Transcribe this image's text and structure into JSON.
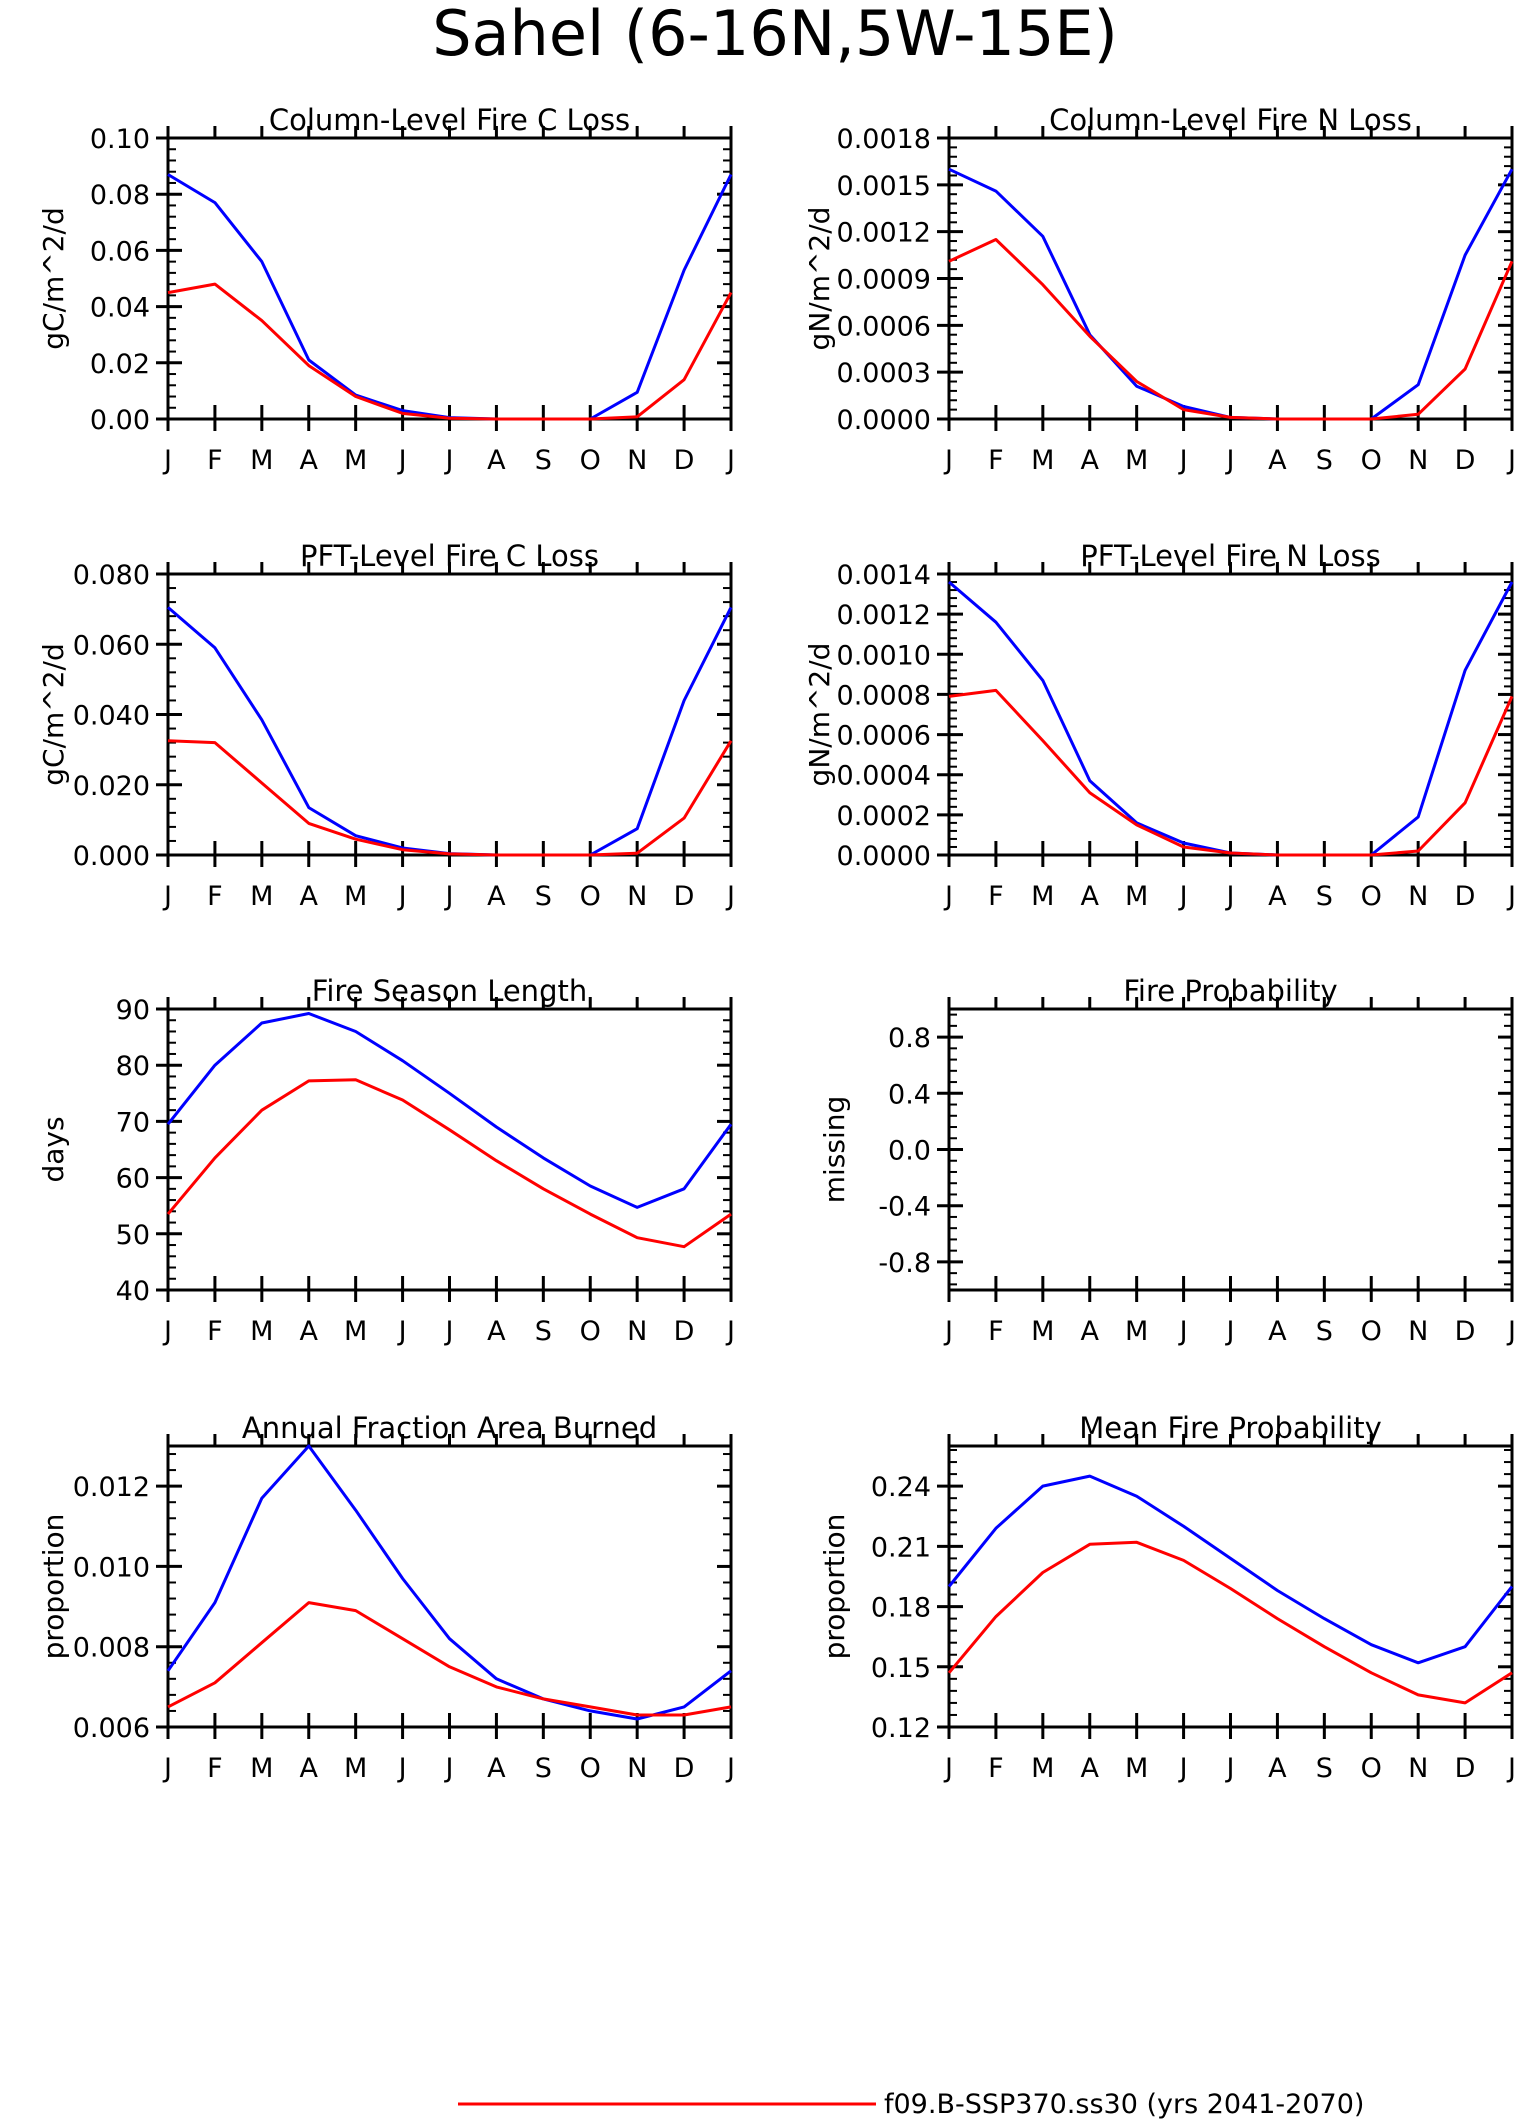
{
  "figure": {
    "title": "Sahel (6-16N,5W-15E)",
    "legend": [
      {
        "label": "f09.B-SSP370.ss30 (yrs 2041-2070)",
        "color": "#ff0000"
      }
    ]
  },
  "chart_data": [
    {
      "id": "col-fire-c",
      "type": "line",
      "title": "Column-Level Fire C Loss",
      "xlabel": "",
      "ylabel": "gC/m^2/d",
      "categories": [
        "J",
        "F",
        "M",
        "A",
        "M",
        "J",
        "J",
        "A",
        "S",
        "O",
        "N",
        "D",
        "J"
      ],
      "ylim": [
        0,
        0.1
      ],
      "yticks": [
        "0.00",
        "0.02",
        "0.04",
        "0.06",
        "0.08",
        "0.10"
      ],
      "series": [
        {
          "color": "#0000ff",
          "values": [
            0.087,
            0.077,
            0.056,
            0.021,
            0.0085,
            0.003,
            0.0005,
            0.0,
            0.0,
            0.0,
            0.0095,
            0.053,
            0.087
          ]
        },
        {
          "color": "#ff0000",
          "values": [
            0.045,
            0.048,
            0.035,
            0.019,
            0.008,
            0.002,
            0.0003,
            0.0,
            0.0,
            0.0,
            0.0008,
            0.014,
            0.045
          ]
        }
      ]
    },
    {
      "id": "col-fire-n",
      "type": "line",
      "title": "Column-Level Fire N Loss",
      "xlabel": "",
      "ylabel": "gN/m^2/d",
      "categories": [
        "J",
        "F",
        "M",
        "A",
        "M",
        "J",
        "J",
        "A",
        "S",
        "O",
        "N",
        "D",
        "J"
      ],
      "ylim": [
        0,
        0.0018
      ],
      "yticks": [
        "0.0000",
        "0.0003",
        "0.0006",
        "0.0009",
        "0.0012",
        "0.0015",
        "0.0018"
      ],
      "series": [
        {
          "color": "#0000ff",
          "values": [
            0.0016,
            0.00146,
            0.00117,
            0.00054,
            0.00021,
            8e-05,
            1e-05,
            0.0,
            0.0,
            0.0,
            0.00022,
            0.00105,
            0.0016
          ]
        },
        {
          "color": "#ff0000",
          "values": [
            0.00101,
            0.00115,
            0.00086,
            0.00053,
            0.00024,
            6e-05,
            1e-05,
            0.0,
            0.0,
            0.0,
            3e-05,
            0.00032,
            0.00101
          ]
        }
      ]
    },
    {
      "id": "pft-fire-c",
      "type": "line",
      "title": "PFT-Level Fire C Loss",
      "xlabel": "",
      "ylabel": "gC/m^2/d",
      "categories": [
        "J",
        "F",
        "M",
        "A",
        "M",
        "J",
        "J",
        "A",
        "S",
        "O",
        "N",
        "D",
        "J"
      ],
      "ylim": [
        0,
        0.08
      ],
      "yticks": [
        "0.000",
        "0.020",
        "0.040",
        "0.060",
        "0.080"
      ],
      "series": [
        {
          "color": "#0000ff",
          "values": [
            0.0705,
            0.059,
            0.0385,
            0.0135,
            0.0055,
            0.002,
            0.0004,
            0.0,
            0.0,
            0.0,
            0.0075,
            0.044,
            0.0705
          ]
        },
        {
          "color": "#ff0000",
          "values": [
            0.0325,
            0.032,
            0.0205,
            0.009,
            0.0045,
            0.0015,
            0.0003,
            0.0,
            0.0,
            0.0,
            0.0005,
            0.0105,
            0.0325
          ]
        }
      ]
    },
    {
      "id": "pft-fire-n",
      "type": "line",
      "title": "PFT-Level Fire N Loss",
      "xlabel": "",
      "ylabel": "gN/m^2/d",
      "categories": [
        "J",
        "F",
        "M",
        "A",
        "M",
        "J",
        "J",
        "A",
        "S",
        "O",
        "N",
        "D",
        "J"
      ],
      "ylim": [
        0,
        0.0014
      ],
      "yticks": [
        "0.0000",
        "0.0002",
        "0.0004",
        "0.0006",
        "0.0008",
        "0.0010",
        "0.0012",
        "0.0014"
      ],
      "series": [
        {
          "color": "#0000ff",
          "values": [
            0.00136,
            0.00116,
            0.00087,
            0.00037,
            0.00016,
            6e-05,
            1e-05,
            0.0,
            0.0,
            0.0,
            0.00019,
            0.00092,
            0.00136
          ]
        },
        {
          "color": "#ff0000",
          "values": [
            0.00079,
            0.00082,
            0.00057,
            0.00031,
            0.00015,
            4e-05,
            1e-05,
            0.0,
            0.0,
            0.0,
            2e-05,
            0.00026,
            0.00079
          ]
        }
      ]
    },
    {
      "id": "fire-season-length",
      "type": "line",
      "title": "Fire Season Length",
      "xlabel": "",
      "ylabel": "days",
      "categories": [
        "J",
        "F",
        "M",
        "A",
        "M",
        "J",
        "J",
        "A",
        "S",
        "O",
        "N",
        "D",
        "J"
      ],
      "ylim": [
        40,
        90
      ],
      "yticks": [
        "40",
        "50",
        "60",
        "70",
        "80",
        "90"
      ],
      "series": [
        {
          "color": "#0000ff",
          "values": [
            69.5,
            80,
            87.5,
            89.2,
            86,
            80.8,
            75,
            69,
            63.5,
            58.5,
            54.7,
            58,
            69.5
          ]
        },
        {
          "color": "#ff0000",
          "values": [
            53.5,
            63.5,
            72,
            77.2,
            77.4,
            73.8,
            68.5,
            63,
            58,
            53.5,
            49.3,
            47.7,
            53.5
          ]
        }
      ]
    },
    {
      "id": "fire-probability",
      "type": "line",
      "title": "Fire Probability",
      "xlabel": "",
      "ylabel": "missing",
      "categories": [
        "J",
        "F",
        "M",
        "A",
        "M",
        "J",
        "J",
        "A",
        "S",
        "O",
        "N",
        "D",
        "J"
      ],
      "ylim": [
        -1.0,
        1.0
      ],
      "yticks": [
        "-0.8",
        "-0.4",
        "0.0",
        "0.4",
        "0.8"
      ],
      "ytick_values": [
        -0.8,
        -0.4,
        0.0,
        0.4,
        0.8
      ],
      "series": []
    },
    {
      "id": "annual-fraction-area-burned",
      "type": "line",
      "title": "Annual Fraction Area Burned",
      "xlabel": "",
      "ylabel": "proportion",
      "categories": [
        "J",
        "F",
        "M",
        "A",
        "M",
        "J",
        "J",
        "A",
        "S",
        "O",
        "N",
        "D",
        "J"
      ],
      "ylim": [
        0.006,
        0.013
      ],
      "yticks": [
        "0.006",
        "0.008",
        "0.010",
        "0.012"
      ],
      "ytick_values": [
        0.006,
        0.008,
        0.01,
        0.012
      ],
      "series": [
        {
          "color": "#0000ff",
          "values": [
            0.0074,
            0.0091,
            0.0117,
            0.013,
            0.0114,
            0.0097,
            0.0082,
            0.0072,
            0.0067,
            0.0064,
            0.0062,
            0.0065,
            0.0074
          ]
        },
        {
          "color": "#ff0000",
          "values": [
            0.0065,
            0.0071,
            0.0081,
            0.0091,
            0.0089,
            0.0082,
            0.0075,
            0.007,
            0.0067,
            0.0065,
            0.0063,
            0.0063,
            0.0065
          ]
        }
      ]
    },
    {
      "id": "mean-fire-probability",
      "type": "line",
      "title": "Mean Fire Probability",
      "xlabel": "",
      "ylabel": "proportion",
      "categories": [
        "J",
        "F",
        "M",
        "A",
        "M",
        "J",
        "J",
        "A",
        "S",
        "O",
        "N",
        "D",
        "J"
      ],
      "ylim": [
        0.12,
        0.26
      ],
      "yticks": [
        "0.12",
        "0.15",
        "0.18",
        "0.21",
        "0.24"
      ],
      "ytick_values": [
        0.12,
        0.15,
        0.18,
        0.21,
        0.24
      ],
      "series": [
        {
          "color": "#0000ff",
          "values": [
            0.19,
            0.219,
            0.24,
            0.245,
            0.235,
            0.22,
            0.204,
            0.188,
            0.174,
            0.161,
            0.152,
            0.16,
            0.19
          ]
        },
        {
          "color": "#ff0000",
          "values": [
            0.147,
            0.175,
            0.197,
            0.211,
            0.212,
            0.203,
            0.189,
            0.174,
            0.16,
            0.147,
            0.136,
            0.132,
            0.147
          ]
        }
      ]
    }
  ]
}
